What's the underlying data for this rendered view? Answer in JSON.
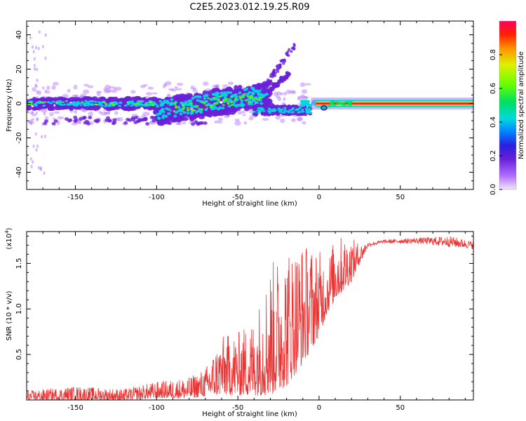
{
  "title": "C2E5.2023.012.19.25.R09",
  "chart_data": [
    {
      "type": "heatmap",
      "xlabel": "Height of straight line (km)",
      "ylabel": "Frequency (Hz)",
      "xlim": [
        -180,
        95
      ],
      "ylim": [
        -50,
        48
      ],
      "xticks": [
        -150,
        -100,
        -50,
        0,
        50
      ],
      "yticks": [
        -40,
        -20,
        0,
        20,
        40
      ],
      "grid": false,
      "colorbar": {
        "label": "Normalized spectral amplitude",
        "range": [
          0.0,
          1.0
        ],
        "ticks": [
          "0.0",
          "0.2",
          "0.4",
          "0.6",
          "0.8"
        ],
        "colormap": [
          "#f2e6ff",
          "#b070ff",
          "#6a1fd8",
          "#2a1fe0",
          "#0080ff",
          "#00d8e0",
          "#00e060",
          "#60ff00",
          "#e0f000",
          "#ff9000",
          "#ff2000",
          "#ff0060"
        ]
      },
      "features": [
        {
          "name": "main band",
          "x": [
            -180,
            -100
          ],
          "y_center": 0,
          "amplitude": 0.3
        },
        {
          "name": "spread echo",
          "x": [
            -100,
            -30
          ],
          "y_range": [
            -10,
            12
          ],
          "amplitude": 0.4
        },
        {
          "name": "diagonal streak",
          "x": [
            -35,
            -15
          ],
          "y_range": [
            10,
            35
          ],
          "amplitude": 0.15
        },
        {
          "name": "strong carrier",
          "x": [
            -5,
            95
          ],
          "y_center": 0,
          "amplitude": 0.95
        }
      ]
    },
    {
      "type": "line",
      "xlabel": "Height of straight line (km)",
      "ylabel": "SNR (10 * v/v)",
      "multiplier": "(x10^4)",
      "multiplier_base": "(x10",
      "multiplier_exp": "4",
      "multiplier_close": ")",
      "xlim": [
        -180,
        95
      ],
      "ylim": [
        0,
        1.85
      ],
      "xticks": [
        -150,
        -100,
        -50,
        0,
        50
      ],
      "yticks": [
        0.5,
        1.0,
        1.5
      ],
      "ytick_labels": [
        "0.5",
        "1.0",
        "1.5"
      ],
      "grid": false,
      "color": "#ee3333",
      "envelope": {
        "x": [
          -180,
          -150,
          -120,
          -100,
          -80,
          -70,
          -60,
          -50,
          -40,
          -30,
          -20,
          -10,
          0,
          5,
          10,
          15,
          20,
          25,
          30,
          40,
          60,
          80,
          95
        ],
        "low": [
          0.0,
          0.0,
          0.0,
          0.02,
          0.02,
          0.04,
          0.06,
          0.05,
          0.05,
          0.05,
          0.15,
          0.4,
          0.7,
          0.95,
          1.1,
          1.2,
          1.3,
          1.5,
          1.68,
          1.72,
          1.72,
          1.68,
          1.66
        ],
        "high": [
          0.1,
          0.15,
          0.12,
          0.2,
          0.25,
          0.35,
          0.7,
          0.75,
          0.9,
          1.5,
          1.7,
          1.75,
          1.65,
          1.55,
          1.8,
          1.8,
          1.78,
          1.72,
          1.73,
          1.76,
          1.78,
          1.8,
          1.74
        ]
      }
    }
  ]
}
